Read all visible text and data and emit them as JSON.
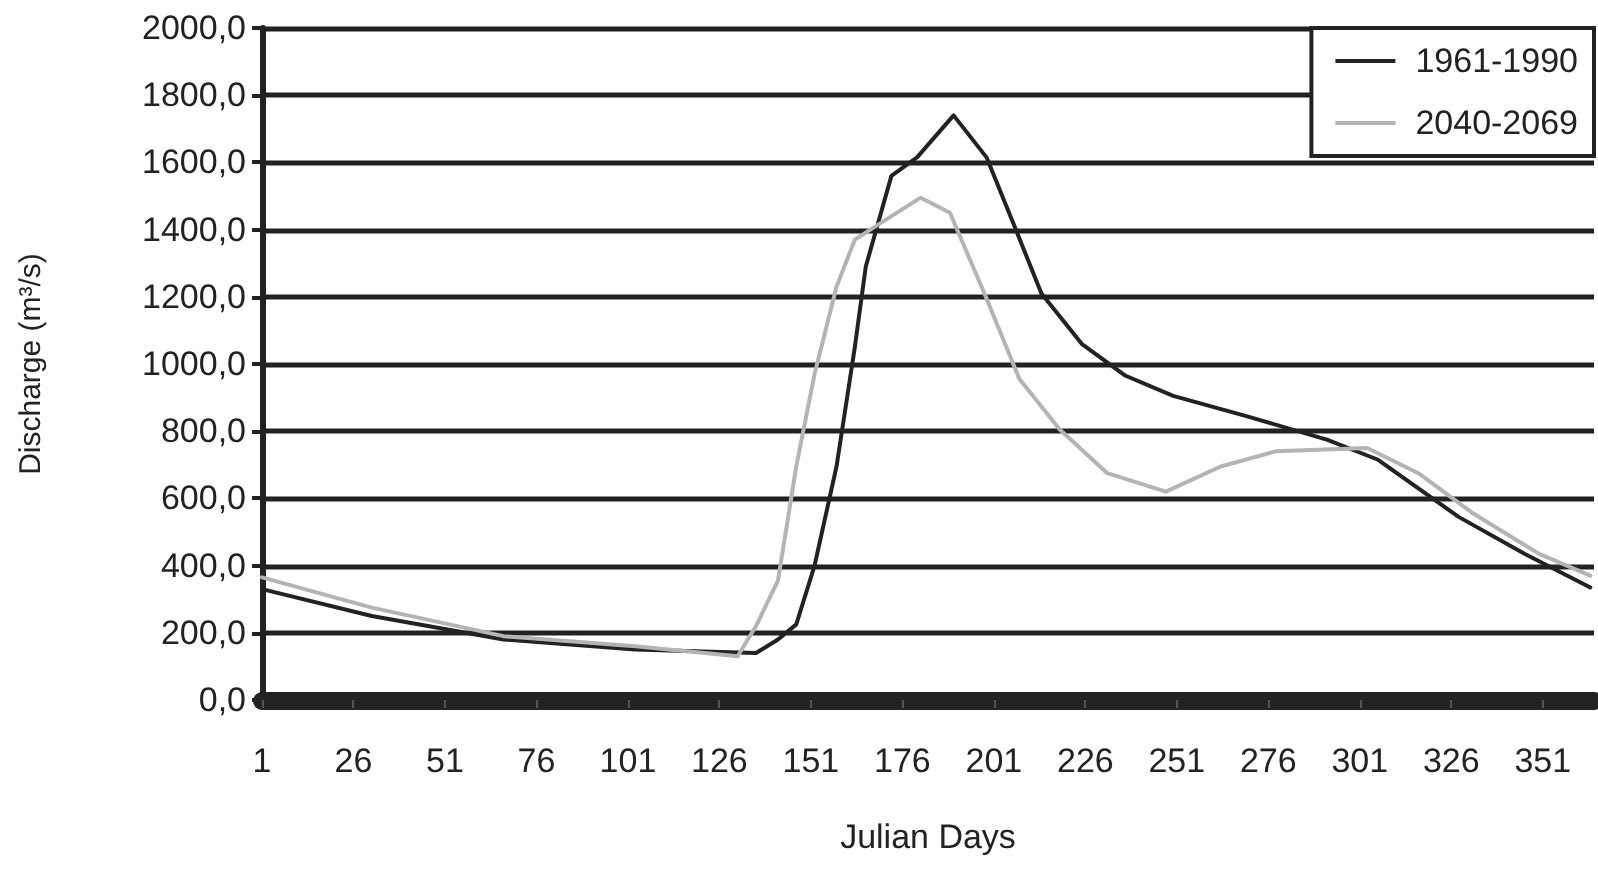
{
  "chart_data": {
    "type": "line",
    "xlabel": "Julian Days",
    "ylabel": "Discharge (m³/s)",
    "xlim": [
      1,
      365
    ],
    "xticks": [
      1,
      26,
      51,
      76,
      101,
      126,
      151,
      176,
      201,
      226,
      251,
      276,
      301,
      326,
      351
    ],
    "ylim": [
      0,
      2000
    ],
    "yticks": [
      {
        "value": 0,
        "label": "0,0"
      },
      {
        "value": 200,
        "label": "200,0"
      },
      {
        "value": 400,
        "label": "400,0"
      },
      {
        "value": 600,
        "label": "600,0"
      },
      {
        "value": 800,
        "label": "800,0"
      },
      {
        "value": 1000,
        "label": "1000,0"
      },
      {
        "value": 1200,
        "label": "1200,0"
      },
      {
        "value": 1400,
        "label": "1400,0"
      },
      {
        "value": 1600,
        "label": "1600,0"
      },
      {
        "value": 1800,
        "label": "1800,0"
      },
      {
        "value": 2000,
        "label": "2000,0"
      }
    ],
    "grid": "y",
    "legend": "top right",
    "marker": "none",
    "line_style": "solid",
    "series": [
      {
        "name": "1961-1990",
        "color": "#222222",
        "x": [
          1,
          31,
          67,
          103,
          136,
          142,
          147,
          152,
          158,
          163,
          166,
          173,
          180,
          190,
          199,
          207,
          214,
          225,
          237,
          250,
          270,
          292,
          306,
          328,
          346,
          364
        ],
        "values": [
          330,
          250,
          180,
          150,
          140,
          180,
          225,
          400,
          695,
          1050,
          1290,
          1560,
          1615,
          1740,
          1615,
          1400,
          1210,
          1060,
          965,
          905,
          845,
          775,
          715,
          545,
          435,
          335
        ]
      },
      {
        "name": "2040-2069",
        "color": "#b4b4b4",
        "x": [
          1,
          31,
          67,
          103,
          131,
          136,
          142,
          147,
          152,
          158,
          163,
          168,
          181,
          189,
          199,
          208,
          219,
          232,
          248,
          263,
          278,
          303,
          317,
          332,
          350,
          364
        ],
        "values": [
          365,
          275,
          190,
          160,
          130,
          220,
          355,
          695,
          970,
          1230,
          1370,
          1405,
          1495,
          1450,
          1195,
          955,
          805,
          675,
          620,
          695,
          740,
          750,
          675,
          555,
          435,
          370
        ]
      }
    ]
  }
}
